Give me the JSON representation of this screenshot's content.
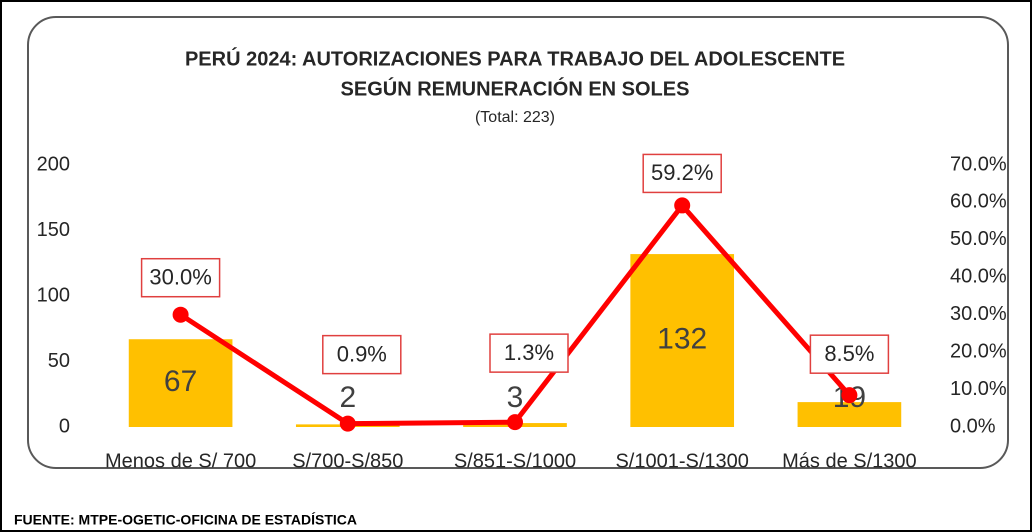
{
  "chart_data": {
    "type": "bar_line",
    "title": [
      "PERÚ 2024: AUTORIZACIONES  PARA TRABAJO DEL ADOLESCENTE",
      "SEGÚN REMUNERACIÓN  EN SOLES"
    ],
    "subtitle": "(Total: 223)",
    "source": "FUENTE: MTPE-OGETIC-OFICINA DE ESTADÍSTICA",
    "categories": [
      "Menos de S/ 700",
      "S/700-S/850",
      "S/851-S/1000",
      "S/1001-S/1300",
      "Más de S/1300"
    ],
    "series": [
      {
        "type": "bar",
        "color": "#FFC000",
        "values": [
          67,
          2,
          3,
          132,
          19
        ]
      },
      {
        "type": "line",
        "axis": "y2",
        "color": "#FF0000",
        "values": [
          30.0,
          0.9,
          1.3,
          59.2,
          8.5
        ],
        "value_labels": [
          "30.0%",
          "0.9%",
          "1.3%",
          "59.2%",
          "8.5%"
        ]
      }
    ],
    "ylim": [
      0,
      200
    ],
    "yticks": [
      0,
      50,
      100,
      150,
      200
    ],
    "y2lim": [
      0,
      70
    ],
    "y2ticks": [
      {
        "value": 0,
        "label": "0.0%"
      },
      {
        "value": 10,
        "label": "10.0%"
      },
      {
        "value": 20,
        "label": "20.0%"
      },
      {
        "value": 30,
        "label": "30.0%"
      },
      {
        "value": 40,
        "label": "40.0%"
      },
      {
        "value": 50,
        "label": "50.0%"
      },
      {
        "value": 60,
        "label": "60.0%"
      },
      {
        "value": 70,
        "label": "70.0%"
      }
    ]
  }
}
